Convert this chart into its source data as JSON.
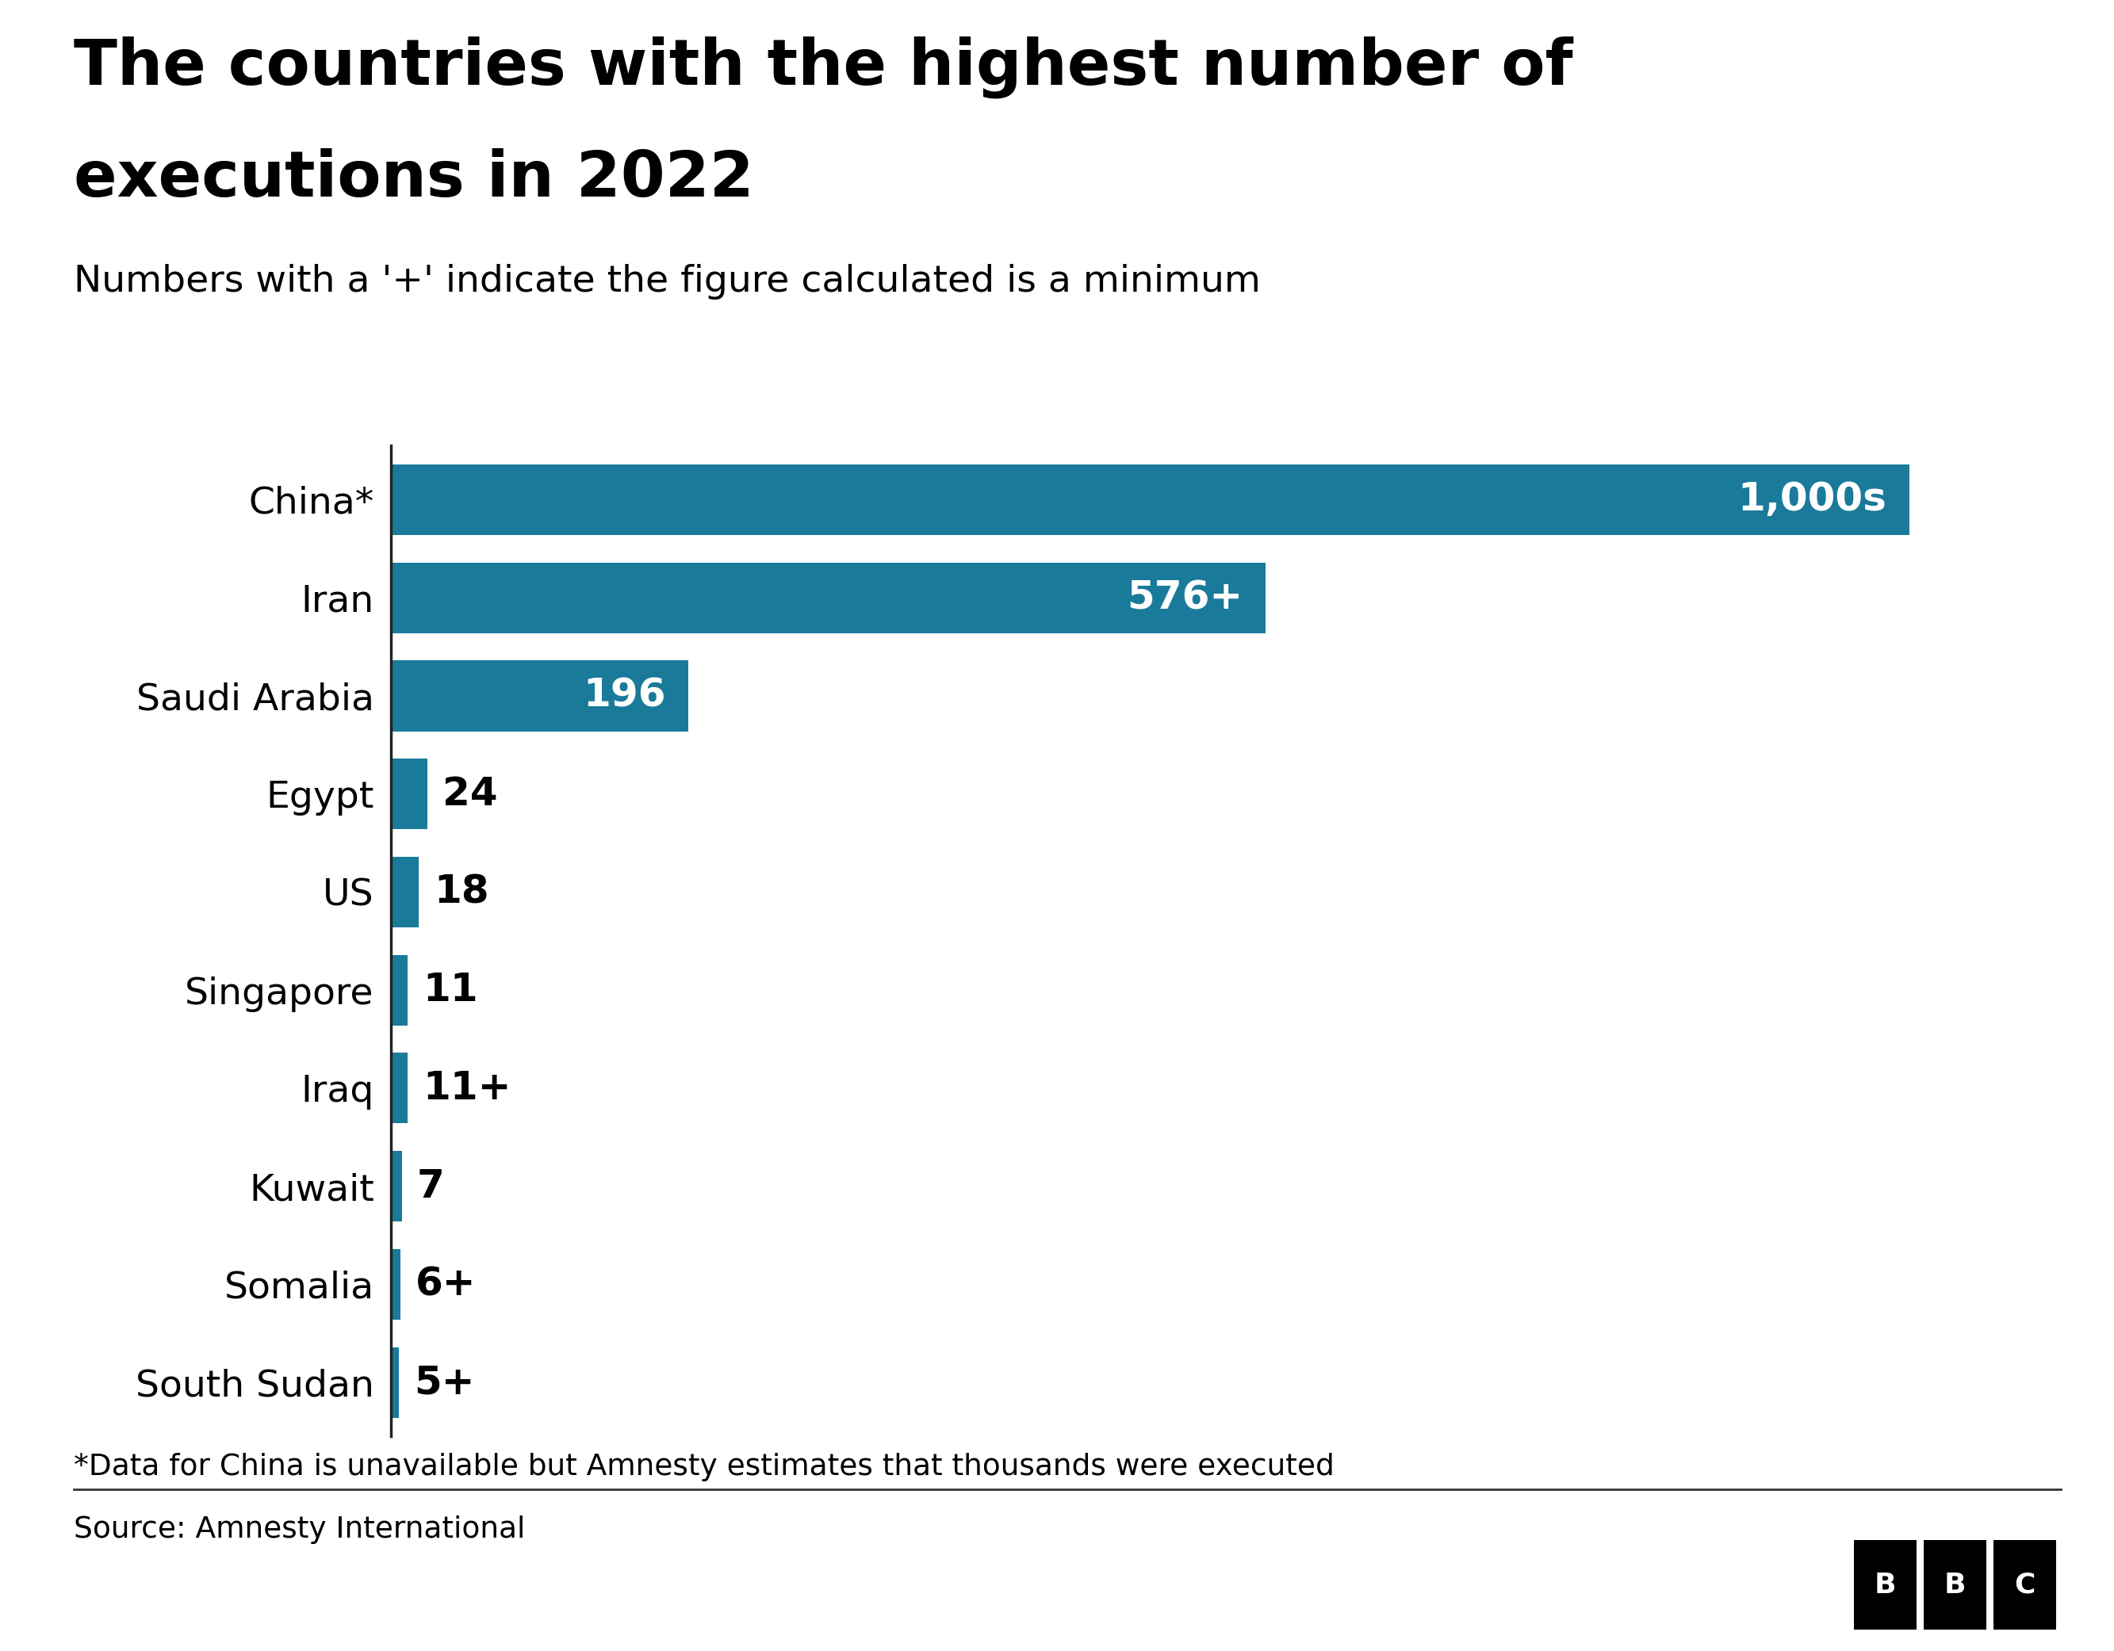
{
  "title_line1": "The countries with the highest number of",
  "title_line2": "executions in 2022",
  "subtitle": "Numbers with a '+' indicate the figure calculated is a minimum",
  "footnote": "*Data for China is unavailable but Amnesty estimates that thousands were executed",
  "source": "Source: Amnesty International",
  "categories": [
    "China*",
    "Iran",
    "Saudi Arabia",
    "Egypt",
    "US",
    "Singapore",
    "Iraq",
    "Kuwait",
    "Somalia",
    "South Sudan"
  ],
  "values": [
    1000,
    576,
    196,
    24,
    18,
    11,
    11,
    7,
    6,
    5
  ],
  "labels": [
    "1,000s",
    "576+",
    "196",
    "24",
    "18",
    "11",
    "11+",
    "7",
    "6+",
    "5+"
  ],
  "bar_color": "#1a7a9a",
  "label_color_inside": "#ffffff",
  "label_color_outside": "#000000",
  "background_color": "#ffffff",
  "title_fontsize": 58,
  "subtitle_fontsize": 34,
  "label_fontsize": 36,
  "category_fontsize": 34,
  "footnote_fontsize": 27,
  "source_fontsize": 27,
  "xlim": [
    0,
    1100
  ],
  "threshold": 80
}
